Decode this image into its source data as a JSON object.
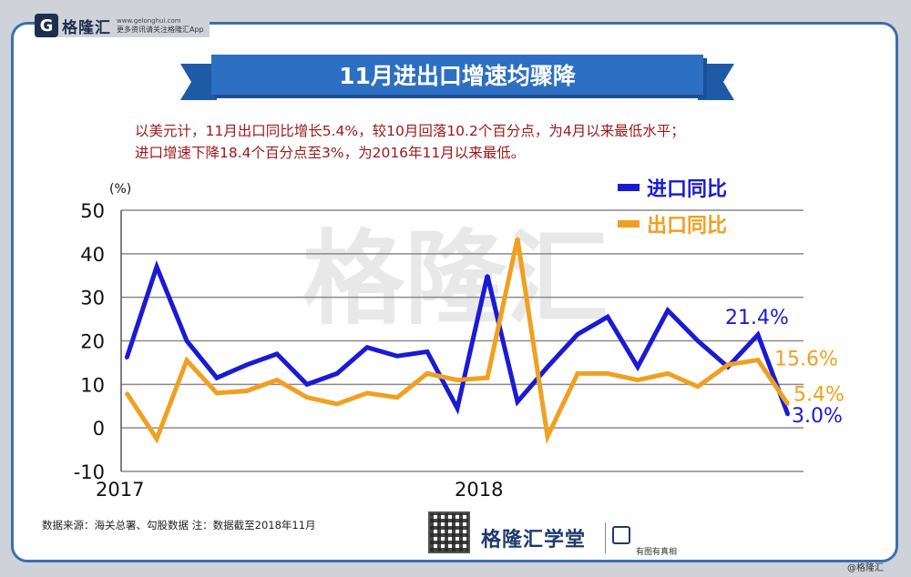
{
  "brand": {
    "name": "格隆汇",
    "url": "www.gelonghui.com",
    "tagline": "更多资讯请关注格隆汇App"
  },
  "title": "11月进出口增速均骤降",
  "subtitle_lines": [
    "以美元计，11月出口同比增长5.4%，较10月回落10.2个百分点，为4月以来最低水平；",
    "进口增速下降18.4个百分点至3%，为2016年11月以来最低。"
  ],
  "source_note": "数据来源：海关总署、勾股数据    注：数据截至2018年11月",
  "bottom_brand": "格隆汇学堂",
  "bottom_slogan": "有图有真相",
  "corner_mark": "@格隆汇",
  "colors": {
    "import": "#1a1ad6",
    "export": "#f0a020",
    "frame": "#3d6fb0",
    "ribbon": "#2d6fc2",
    "subtitle": "#a01818"
  },
  "chart_data": {
    "type": "line",
    "title": "",
    "ylabel": "(%)",
    "ylim": [
      -10,
      50
    ],
    "yticks": [
      -10,
      0,
      10,
      20,
      30,
      40,
      50
    ],
    "x_tick_labels": [
      {
        "label": "2017",
        "index": 0
      },
      {
        "label": "2018",
        "index": 12
      }
    ],
    "grid": true,
    "legend_position": "top-right",
    "categories": [
      "2017-01",
      "2017-02",
      "2017-03",
      "2017-04",
      "2017-05",
      "2017-06",
      "2017-07",
      "2017-08",
      "2017-09",
      "2017-10",
      "2017-11",
      "2017-12",
      "2018-01",
      "2018-02",
      "2018-03",
      "2018-04",
      "2018-05",
      "2018-06",
      "2018-07",
      "2018-08",
      "2018-09",
      "2018-10",
      "2018-11"
    ],
    "series": [
      {
        "name": "进口同比",
        "color": "#1a1ad6",
        "values": [
          16.0,
          37.0,
          20.0,
          11.5,
          14.5,
          17.0,
          10.0,
          12.5,
          18.5,
          16.5,
          17.5,
          4.5,
          35.0,
          6.0,
          14.0,
          21.5,
          25.5,
          14.0,
          27.0,
          20.0,
          14.0,
          21.4,
          3.0
        ],
        "end_labels": [
          {
            "index": 21,
            "text": "21.4%"
          },
          {
            "index": 22,
            "text": "3.0%"
          }
        ]
      },
      {
        "name": "出口同比",
        "color": "#f0a020",
        "values": [
          8.0,
          -2.5,
          15.5,
          8.0,
          8.5,
          11.0,
          7.0,
          5.5,
          8.0,
          7.0,
          12.5,
          11.0,
          11.5,
          43.5,
          -2.0,
          12.5,
          12.5,
          11.0,
          12.5,
          9.5,
          14.5,
          15.6,
          5.4
        ],
        "end_labels": [
          {
            "index": 21,
            "text": "15.6%"
          },
          {
            "index": 22,
            "text": "5.4%"
          }
        ]
      }
    ]
  }
}
